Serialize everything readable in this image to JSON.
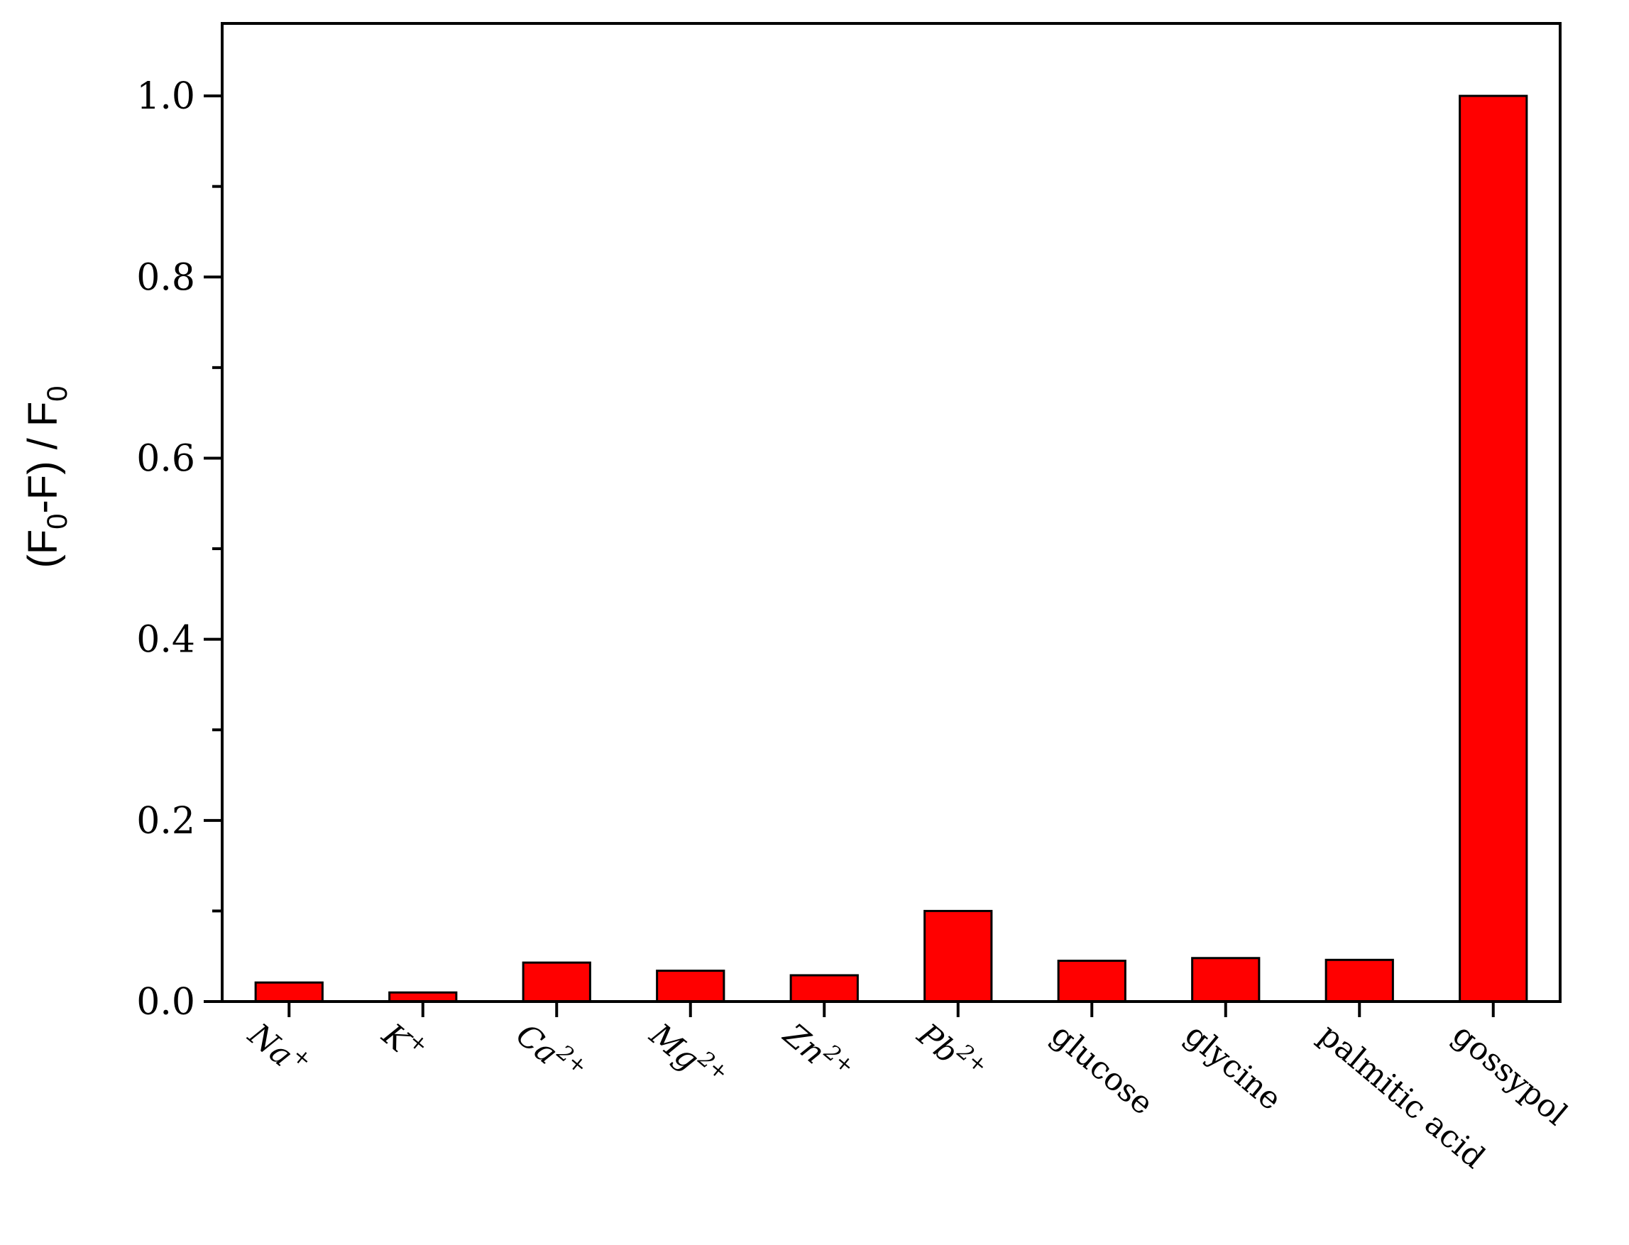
{
  "chart_data": {
    "type": "bar",
    "title": "",
    "xlabel": "",
    "ylabel": {
      "parts": [
        {
          "t": "(F",
          "sub": false
        },
        {
          "t": "0",
          "sub": true
        },
        {
          "t": "-F) / F",
          "sub": false
        },
        {
          "t": "0",
          "sub": true
        }
      ]
    },
    "ylim": [
      0,
      1.08
    ],
    "yticks": [
      "0.0",
      "0.2",
      "0.4",
      "0.6",
      "0.8",
      "1.0"
    ],
    "categories": [
      {
        "base": "Na",
        "sup": "+",
        "italic": true
      },
      {
        "base": "K",
        "sup": "+",
        "italic": true
      },
      {
        "base": "Ca",
        "sup": "2+",
        "italic": true
      },
      {
        "base": "Mg",
        "sup": "2+",
        "italic": true
      },
      {
        "base": "Zn",
        "sup": "2+",
        "italic": true
      },
      {
        "base": "Pb",
        "sup": "2+",
        "italic": true
      },
      {
        "base": "glucose",
        "sup": "",
        "italic": false
      },
      {
        "base": "glycine",
        "sup": "",
        "italic": false
      },
      {
        "base": "palmitic acid",
        "sup": "",
        "italic": false
      },
      {
        "base": "gossypol",
        "sup": "",
        "italic": false
      }
    ],
    "values": [
      0.021,
      0.01,
      0.043,
      0.034,
      0.029,
      0.1,
      0.045,
      0.048,
      0.046,
      1.0
    ],
    "grid": false,
    "legend": "none",
    "colors": {
      "bar": "#ff0000",
      "stroke": "#000000"
    }
  }
}
